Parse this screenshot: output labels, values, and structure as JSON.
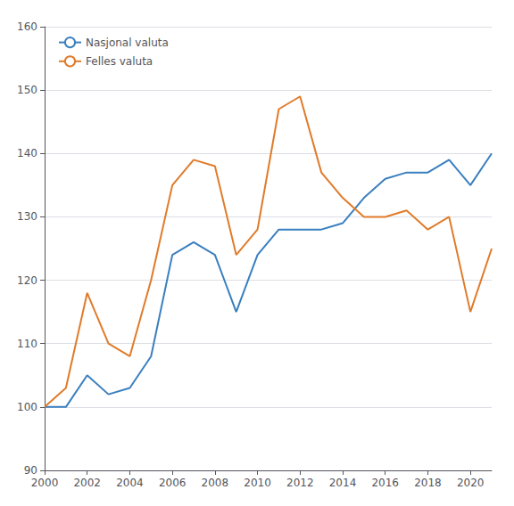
{
  "chart_data": {
    "type": "line",
    "x": [
      2000,
      2001,
      2002,
      2003,
      2004,
      2005,
      2006,
      2007,
      2008,
      2009,
      2010,
      2011,
      2012,
      2013,
      2014,
      2015,
      2016,
      2017,
      2018,
      2019,
      2020,
      2021
    ],
    "series": [
      {
        "name": "Nasjonal valuta",
        "color": "#3a7fbf",
        "values": [
          100,
          100,
          105,
          102,
          103,
          108,
          124,
          126,
          124,
          115,
          124,
          128,
          128,
          128,
          129,
          133,
          136,
          137,
          137,
          139,
          135,
          140
        ]
      },
      {
        "name": "Felles valuta",
        "color": "#e07b2a",
        "values": [
          100,
          103,
          118,
          110,
          108,
          120,
          135,
          139,
          138,
          124,
          128,
          147,
          149,
          137,
          133,
          130,
          130,
          131,
          128,
          130,
          115,
          125
        ]
      }
    ],
    "xlim": [
      2000,
      2021
    ],
    "xticks": [
      2000,
      2002,
      2004,
      2006,
      2008,
      2010,
      2012,
      2014,
      2016,
      2018,
      2020
    ],
    "ylim": [
      90,
      160
    ],
    "yticks": [
      90,
      100,
      110,
      120,
      130,
      140,
      150,
      160
    ],
    "grid": true,
    "legend": "upper left"
  }
}
